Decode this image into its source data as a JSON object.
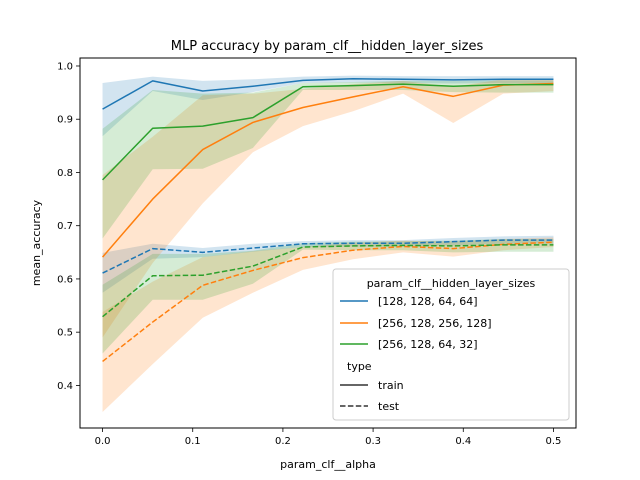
{
  "chart_data": {
    "type": "line",
    "title": "MLP accuracy by param_clf__hidden_layer_sizes",
    "xlabel": "param_clf__alpha",
    "ylabel": "mean_accuracy",
    "xlim": [
      -0.025,
      0.525
    ],
    "ylim": [
      0.32,
      1.015
    ],
    "xticks": [
      0.0,
      0.1,
      0.2,
      0.3,
      0.4,
      0.5
    ],
    "xtick_labels": [
      "0.0",
      "0.1",
      "0.2",
      "0.3",
      "0.4",
      "0.5"
    ],
    "yticks": [
      0.4,
      0.5,
      0.6,
      0.7,
      0.8,
      0.9,
      1.0
    ],
    "ytick_labels": [
      "0.4",
      "0.5",
      "0.6",
      "0.7",
      "0.8",
      "0.9",
      "1.0"
    ],
    "grid": false,
    "legend": {
      "placement": "lower-right",
      "hue_title": "param_clf__hidden_layer_sizes",
      "style_title": "type",
      "style_entries": [
        {
          "label": "train",
          "dash": "solid"
        },
        {
          "label": "test",
          "dash": "dashed"
        }
      ]
    },
    "x": [
      0.0,
      0.0556,
      0.1111,
      0.1667,
      0.2222,
      0.2778,
      0.3333,
      0.3889,
      0.4444,
      0.5
    ],
    "series": [
      {
        "name": "[128, 128, 64, 64]",
        "color": "#1f77b4",
        "train": {
          "mean": [
            0.919,
            0.972,
            0.953,
            0.962,
            0.973,
            0.976,
            0.975,
            0.974,
            0.975,
            0.975
          ],
          "lower": [
            0.868,
            0.953,
            0.936,
            0.951,
            0.968,
            0.969,
            0.968,
            0.967,
            0.968,
            0.968
          ],
          "upper": [
            0.968,
            0.98,
            0.972,
            0.975,
            0.98,
            0.982,
            0.981,
            0.981,
            0.981,
            0.981
          ]
        },
        "test": {
          "mean": [
            0.611,
            0.657,
            0.65,
            0.658,
            0.666,
            0.667,
            0.667,
            0.67,
            0.673,
            0.673
          ],
          "lower": [
            0.574,
            0.638,
            0.641,
            0.651,
            0.66,
            0.661,
            0.661,
            0.663,
            0.666,
            0.666
          ],
          "upper": [
            0.649,
            0.666,
            0.658,
            0.666,
            0.671,
            0.673,
            0.673,
            0.677,
            0.68,
            0.681
          ]
        }
      },
      {
        "name": "[256, 128, 256, 128]",
        "color": "#ff7f0e",
        "train": {
          "mean": [
            0.641,
            0.75,
            0.843,
            0.894,
            0.922,
            0.942,
            0.961,
            0.943,
            0.964,
            0.967
          ],
          "lower": [
            0.49,
            0.63,
            0.742,
            0.838,
            0.887,
            0.915,
            0.948,
            0.893,
            0.948,
            0.953
          ],
          "upper": [
            0.795,
            0.867,
            0.945,
            0.948,
            0.957,
            0.966,
            0.972,
            0.961,
            0.975,
            0.976
          ]
        },
        "test": {
          "mean": [
            0.445,
            0.519,
            0.588,
            0.616,
            0.64,
            0.654,
            0.661,
            0.657,
            0.665,
            0.669
          ],
          "lower": [
            0.35,
            0.44,
            0.527,
            0.574,
            0.617,
            0.637,
            0.65,
            0.642,
            0.654,
            0.66
          ],
          "upper": [
            0.538,
            0.595,
            0.641,
            0.652,
            0.66,
            0.668,
            0.672,
            0.67,
            0.675,
            0.678
          ]
        }
      },
      {
        "name": "[256, 128, 64, 32]",
        "color": "#2ca02c",
        "train": {
          "mean": [
            0.786,
            0.883,
            0.887,
            0.903,
            0.961,
            0.963,
            0.966,
            0.962,
            0.965,
            0.965
          ],
          "lower": [
            0.676,
            0.806,
            0.807,
            0.846,
            0.955,
            0.955,
            0.955,
            0.951,
            0.95,
            0.95
          ],
          "upper": [
            0.882,
            0.955,
            0.948,
            0.95,
            0.968,
            0.97,
            0.972,
            0.972,
            0.973,
            0.973
          ]
        },
        "test": {
          "mean": [
            0.529,
            0.606,
            0.607,
            0.624,
            0.66,
            0.662,
            0.663,
            0.662,
            0.664,
            0.664
          ],
          "lower": [
            0.46,
            0.561,
            0.561,
            0.591,
            0.655,
            0.654,
            0.654,
            0.65,
            0.651,
            0.651
          ],
          "upper": [
            0.589,
            0.647,
            0.647,
            0.653,
            0.667,
            0.67,
            0.671,
            0.672,
            0.675,
            0.675
          ]
        }
      }
    ]
  }
}
